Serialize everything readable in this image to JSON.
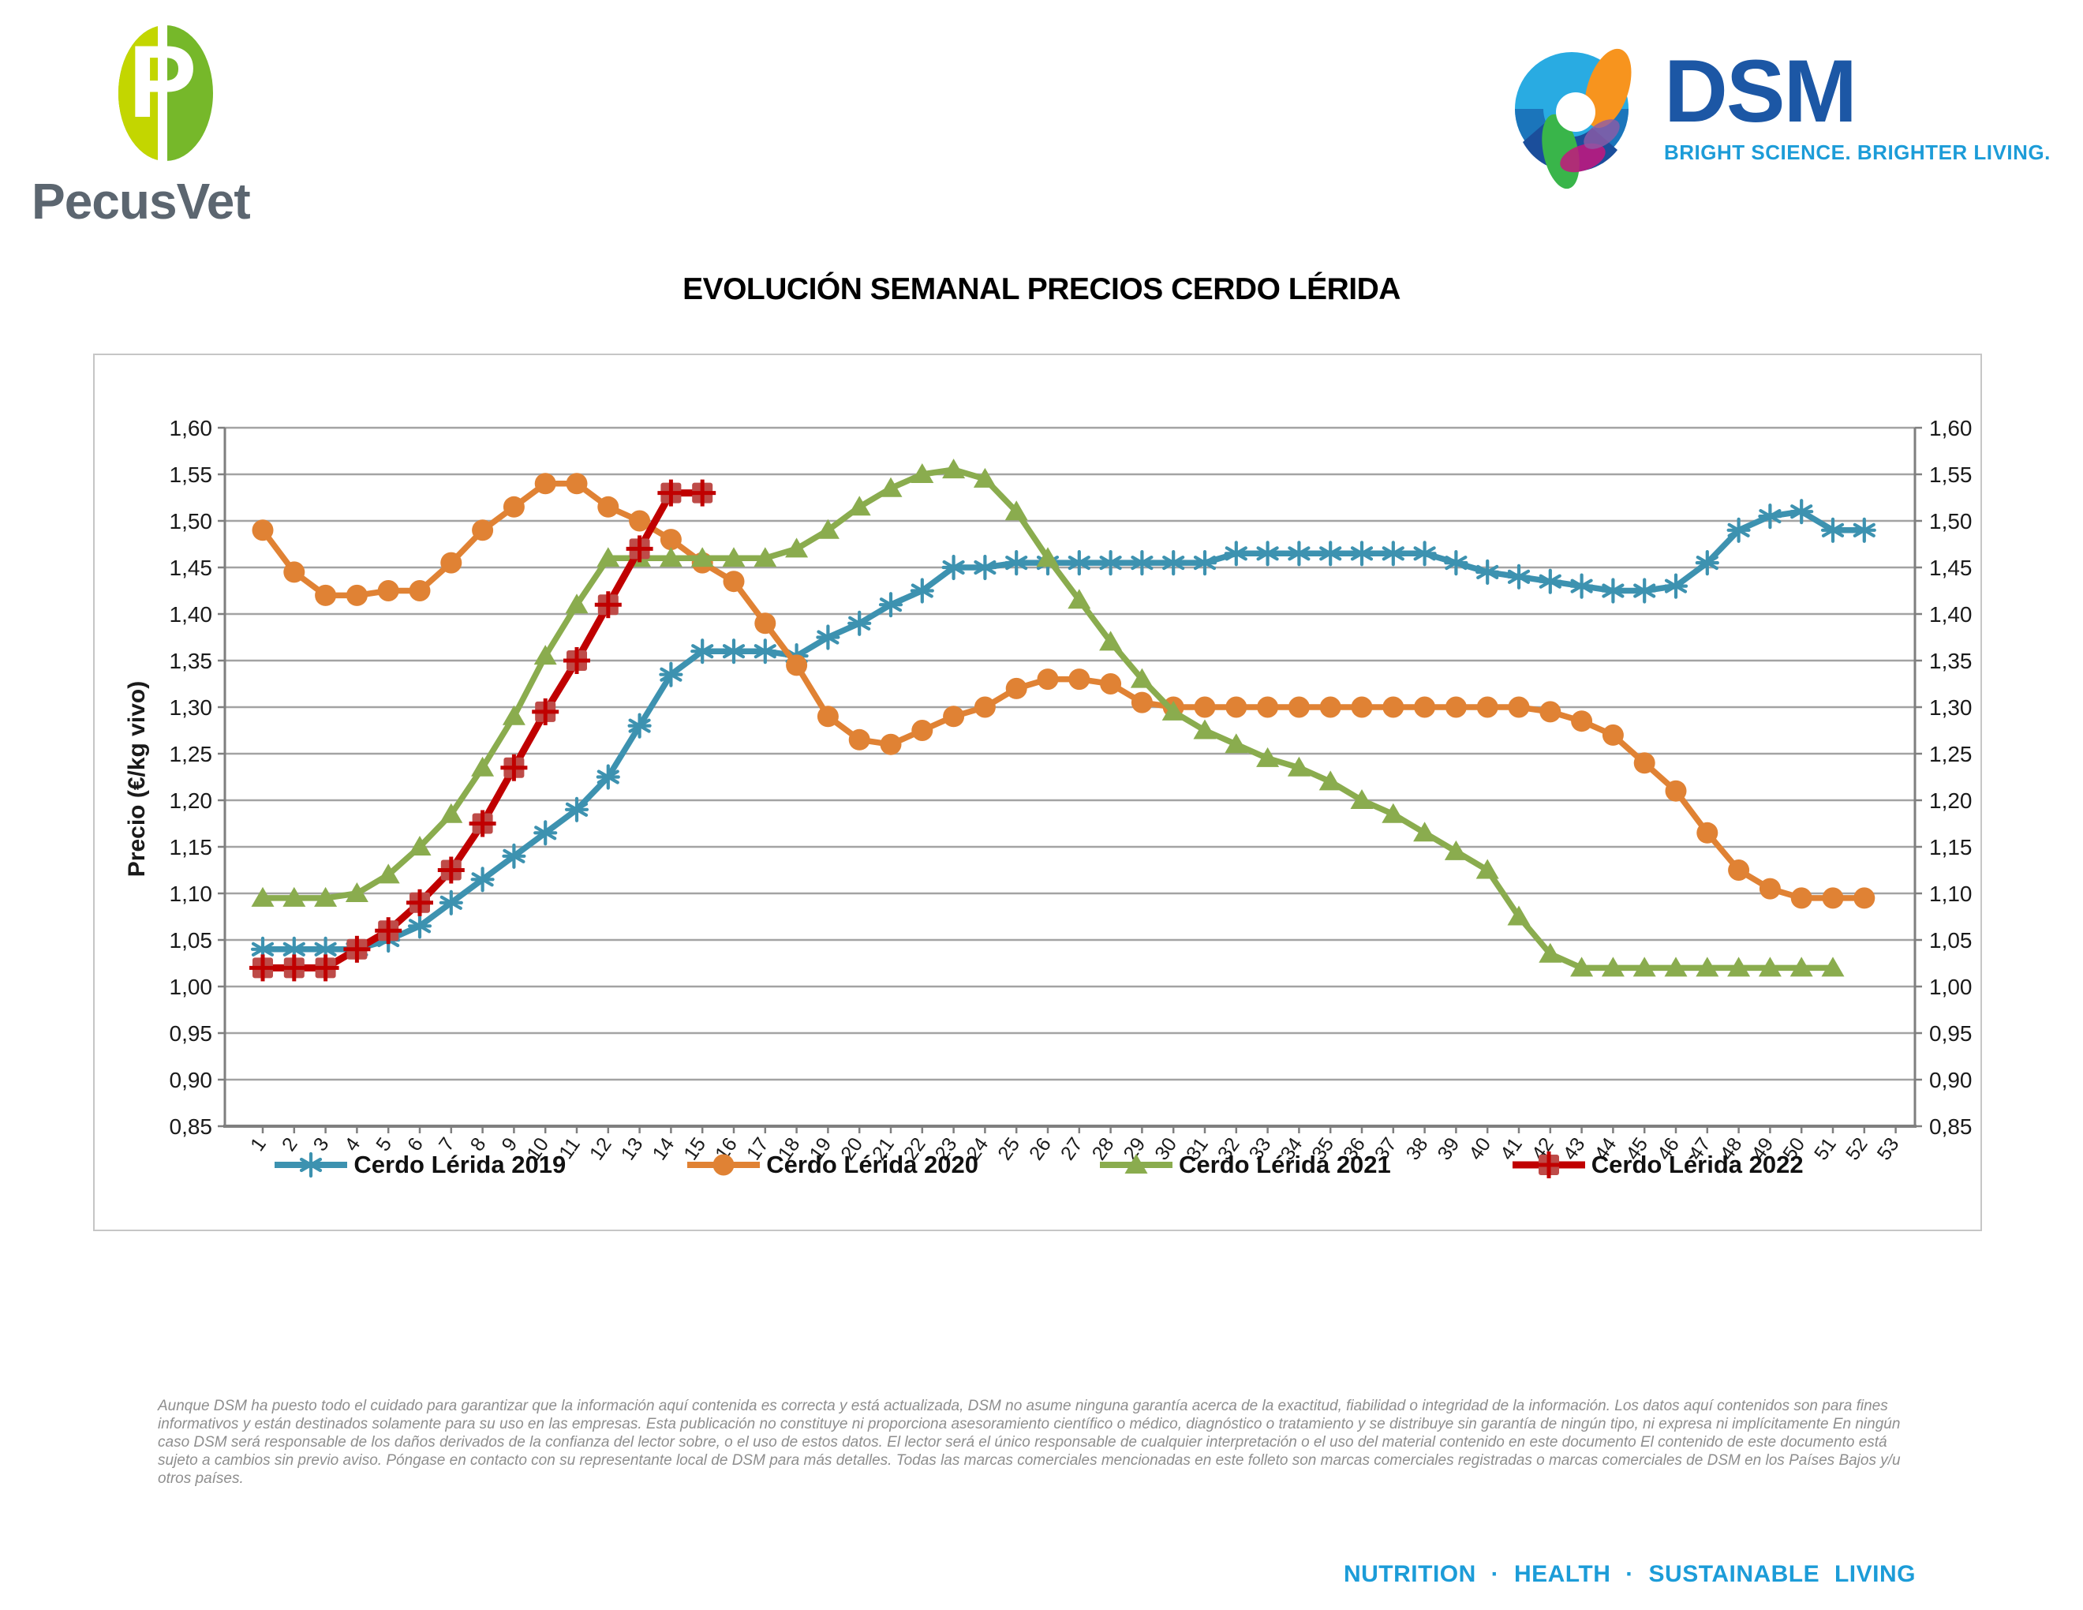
{
  "header": {
    "left_logo": {
      "wordmark": "PecusVet",
      "mark_letter": "P",
      "colors": {
        "leaf_left": "#C3D600",
        "leaf_right": "#76B82A",
        "text": "#5C6670"
      }
    },
    "right_logo": {
      "wordmark": "DSM",
      "tagline": "BRIGHT SCIENCE. BRIGHTER LIVING.",
      "colors": {
        "wordmark": "#1C57A5",
        "tagline": "#1C9CD8"
      }
    }
  },
  "title": "EVOLUCIÓN SEMANAL PRECIOS CERDO LÉRIDA",
  "chart_data": {
    "type": "line",
    "title": "EVOLUCIÓN SEMANAL PRECIOS CERDO LÉRIDA",
    "xlabel": "",
    "ylabel": "Precio (€/kg vivo)",
    "ylim": [
      0.85,
      1.6
    ],
    "ytick_step": 0.05,
    "decimal_separator": ",",
    "grid": true,
    "legend_position": "bottom",
    "axis_color": "#7F7F7F",
    "grid_color": "#A3A3A3",
    "x_weeks": [
      1,
      2,
      3,
      4,
      5,
      6,
      7,
      8,
      9,
      10,
      11,
      12,
      13,
      14,
      15,
      16,
      17,
      18,
      19,
      20,
      21,
      22,
      23,
      24,
      25,
      26,
      27,
      28,
      29,
      30,
      31,
      32,
      33,
      34,
      35,
      36,
      37,
      38,
      39,
      40,
      41,
      42,
      43,
      44,
      45,
      46,
      47,
      48,
      49,
      50,
      51,
      52,
      53
    ],
    "series": [
      {
        "name": "Cerdo Lérida 2019",
        "color": "#3D92B0",
        "marker": "star",
        "values": [
          1.04,
          1.04,
          1.04,
          1.04,
          1.05,
          1.065,
          1.09,
          1.115,
          1.14,
          1.165,
          1.19,
          1.225,
          1.28,
          1.335,
          1.36,
          1.36,
          1.36,
          1.355,
          1.375,
          1.39,
          1.41,
          1.425,
          1.45,
          1.45,
          1.455,
          1.455,
          1.455,
          1.455,
          1.455,
          1.455,
          1.455,
          1.465,
          1.465,
          1.465,
          1.465,
          1.465,
          1.465,
          1.465,
          1.455,
          1.445,
          1.44,
          1.435,
          1.43,
          1.425,
          1.425,
          1.43,
          1.455,
          1.49,
          1.505,
          1.51,
          1.49,
          1.49
        ]
      },
      {
        "name": "Cerdo Lérida 2020",
        "color": "#E08234",
        "marker": "circle",
        "values": [
          1.49,
          1.445,
          1.42,
          1.42,
          1.425,
          1.425,
          1.455,
          1.49,
          1.515,
          1.54,
          1.54,
          1.515,
          1.5,
          1.48,
          1.455,
          1.435,
          1.39,
          1.345,
          1.29,
          1.265,
          1.26,
          1.275,
          1.29,
          1.3,
          1.32,
          1.33,
          1.33,
          1.325,
          1.305,
          1.3,
          1.3,
          1.3,
          1.3,
          1.3,
          1.3,
          1.3,
          1.3,
          1.3,
          1.3,
          1.3,
          1.3,
          1.295,
          1.285,
          1.27,
          1.24,
          1.21,
          1.165,
          1.125,
          1.105,
          1.095,
          1.095,
          1.095
        ]
      },
      {
        "name": "Cerdo Lérida 2021",
        "color": "#8AAC4E",
        "marker": "triangle",
        "values": [
          1.095,
          1.095,
          1.095,
          1.1,
          1.12,
          1.15,
          1.185,
          1.235,
          1.29,
          1.355,
          1.41,
          1.46,
          1.46,
          1.46,
          1.46,
          1.46,
          1.46,
          1.47,
          1.49,
          1.515,
          1.535,
          1.55,
          1.555,
          1.545,
          1.51,
          1.46,
          1.415,
          1.37,
          1.33,
          1.295,
          1.275,
          1.26,
          1.245,
          1.235,
          1.22,
          1.2,
          1.185,
          1.165,
          1.145,
          1.125,
          1.075,
          1.035,
          1.02,
          1.02,
          1.02,
          1.02,
          1.02,
          1.02,
          1.02,
          1.02,
          1.02
        ]
      },
      {
        "name": "Cerdo Lérida 2022",
        "color": "#C00000",
        "marker": "square-plus",
        "marker_fill": "#BE4B48",
        "values": [
          1.02,
          1.02,
          1.02,
          1.04,
          1.06,
          1.09,
          1.125,
          1.175,
          1.235,
          1.295,
          1.35,
          1.41,
          1.47,
          1.53,
          1.53
        ]
      }
    ]
  },
  "footer": {
    "disclaimer_lines": [
      "Aunque DSM ha puesto todo el cuidado para garantizar que la información aquí contenida es correcta y está actualizada, DSM no asume ninguna garantía acerca de la exactitud, fiabilidad o integridad de la información. Los datos aquí contenidos son para fines",
      "informativos y están destinados solamente para su uso en las empresas. Esta publicación no constituye ni proporciona asesoramiento científico o médico, diagnóstico o tratamiento y se distribuye sin garantía de ningún tipo, ni expresa ni implícitamente En ningún",
      "caso DSM será responsable de los daños derivados de la confianza del lector sobre, o el uso de estos datos. El lector será el único responsable de cualquier interpretación o el uso del material contenido en este documento El contenido de este documento está",
      "sujeto a cambios sin previo aviso. Póngase en contacto con su representante local de DSM para más detalles. Todas las marcas comerciales mencionadas en este folleto son marcas comerciales registradas o marcas comerciales de DSM en los Países Bajos y/u",
      "otros países."
    ],
    "tagline": "NUTRITION · HEALTH · SUSTAINABLE LIVING"
  }
}
